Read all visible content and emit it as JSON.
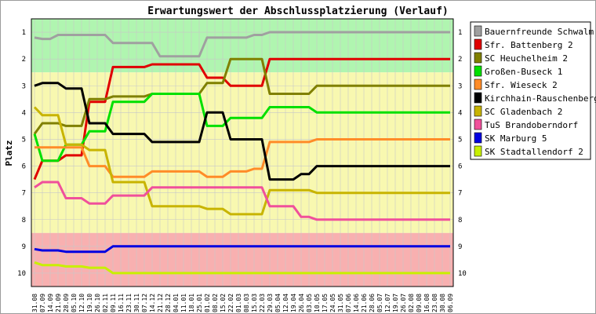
{
  "chart_data": {
    "type": "line",
    "title": "Erwartungswert der Abschlussplatzierung (Verlauf)",
    "ylabel": "Platz",
    "ylim": [
      0.5,
      10.5
    ],
    "y_inverted": true,
    "yticks": [
      1,
      2,
      3,
      4,
      5,
      6,
      7,
      8,
      9,
      10
    ],
    "x": [
      "31.08",
      "07.09",
      "14.09",
      "21.09",
      "28.09",
      "05.10",
      "12.10",
      "19.10",
      "26.10",
      "02.11",
      "09.11",
      "16.11",
      "23.11",
      "30.11",
      "07.12",
      "14.12",
      "21.12",
      "28.12",
      "04.01",
      "11.01",
      "18.01",
      "25.01",
      "01.02",
      "08.02",
      "15.02",
      "22.02",
      "01.03",
      "08.03",
      "15.03",
      "22.03",
      "29.03",
      "05.04",
      "12.04",
      "19.04",
      "26.04",
      "03.05",
      "10.05",
      "17.05",
      "24.05",
      "31.05",
      "07.06",
      "14.06",
      "21.06",
      "28.06",
      "05.07",
      "12.07",
      "19.07",
      "26.07",
      "02.08",
      "09.08",
      "16.08",
      "23.08",
      "30.08",
      "06.09"
    ],
    "zones": [
      {
        "from": 0.5,
        "to": 2.5,
        "color": "#b0f5b0"
      },
      {
        "from": 2.5,
        "to": 8.5,
        "color": "#f8f8b0"
      },
      {
        "from": 8.5,
        "to": 10.5,
        "color": "#f8b0b0"
      }
    ],
    "grid": true,
    "legend_position": "right",
    "series": [
      {
        "name": "Bauernfreunde Schwalm",
        "color": "#a0a0a0",
        "values": [
          1.2,
          1.25,
          1.25,
          1.1,
          1.1,
          1.1,
          1.1,
          1.1,
          1.1,
          1.1,
          1.4,
          1.4,
          1.4,
          1.4,
          1.4,
          1.4,
          1.9,
          1.9,
          1.9,
          1.9,
          1.9,
          1.9,
          1.2,
          1.2,
          1.2,
          1.2,
          1.2,
          1.2,
          1.1,
          1.1,
          1,
          1,
          1,
          1,
          1,
          1,
          1,
          1,
          1,
          1,
          1,
          1,
          1,
          1,
          1,
          1,
          1,
          1,
          1,
          1,
          1,
          1,
          1,
          1
        ]
      },
      {
        "name": "Sfr. Battenberg 2",
        "color": "#e00000",
        "values": [
          6.5,
          5.8,
          5.8,
          5.8,
          5.6,
          5.6,
          5.6,
          3.6,
          3.6,
          3.6,
          2.3,
          2.3,
          2.3,
          2.3,
          2.3,
          2.2,
          2.2,
          2.2,
          2.2,
          2.2,
          2.2,
          2.2,
          2.7,
          2.7,
          2.7,
          3,
          3,
          3,
          3,
          3,
          2,
          2,
          2,
          2,
          2,
          2,
          2,
          2,
          2,
          2,
          2,
          2,
          2,
          2,
          2,
          2,
          2,
          2,
          2,
          2,
          2,
          2,
          2,
          2
        ]
      },
      {
        "name": "SC Heuchelheim 2",
        "color": "#808000",
        "values": [
          4.8,
          4.4,
          4.4,
          4.4,
          4.5,
          4.5,
          4.5,
          3.5,
          3.5,
          3.5,
          3.4,
          3.4,
          3.4,
          3.4,
          3.4,
          3.3,
          3.3,
          3.3,
          3.3,
          3.3,
          3.3,
          3.3,
          2.9,
          2.9,
          2.9,
          2,
          2,
          2,
          2,
          2,
          3.3,
          3.3,
          3.3,
          3.3,
          3.3,
          3.3,
          3,
          3,
          3,
          3,
          3,
          3,
          3,
          3,
          3,
          3,
          3,
          3,
          3,
          3,
          3,
          3,
          3,
          3
        ]
      },
      {
        "name": "Großen-Buseck 1",
        "color": "#00e000",
        "values": [
          4.8,
          5.8,
          5.8,
          5.8,
          5.2,
          5.2,
          5.2,
          4.7,
          4.7,
          4.7,
          3.6,
          3.6,
          3.6,
          3.6,
          3.6,
          3.3,
          3.3,
          3.3,
          3.3,
          3.3,
          3.3,
          3.3,
          4.5,
          4.5,
          4.5,
          4.2,
          4.2,
          4.2,
          4.2,
          4.2,
          3.8,
          3.8,
          3.8,
          3.8,
          3.8,
          3.8,
          4,
          4,
          4,
          4,
          4,
          4,
          4,
          4,
          4,
          4,
          4,
          4,
          4,
          4,
          4,
          4,
          4,
          4
        ]
      },
      {
        "name": "Sfr. Wieseck 2",
        "color": "#ff8c28",
        "values": [
          5.3,
          5.3,
          5.3,
          5.3,
          5.3,
          5.3,
          5.3,
          6,
          6,
          6,
          6.4,
          6.4,
          6.4,
          6.4,
          6.4,
          6.2,
          6.2,
          6.2,
          6.2,
          6.2,
          6.2,
          6.2,
          6.4,
          6.4,
          6.4,
          6.2,
          6.2,
          6.2,
          6.1,
          6.1,
          5.1,
          5.1,
          5.1,
          5.1,
          5.1,
          5.1,
          5,
          5,
          5,
          5,
          5,
          5,
          5,
          5,
          5,
          5,
          5,
          5,
          5,
          5,
          5,
          5,
          5,
          5
        ]
      },
      {
        "name": "Kirchhain-Rauschenberg",
        "color": "#000000",
        "values": [
          3,
          2.9,
          2.9,
          2.9,
          3.1,
          3.1,
          3.1,
          4.4,
          4.4,
          4.4,
          4.8,
          4.8,
          4.8,
          4.8,
          4.8,
          5.1,
          5.1,
          5.1,
          5.1,
          5.1,
          5.1,
          5.1,
          4,
          4,
          4,
          5,
          5,
          5,
          5,
          5,
          6.5,
          6.5,
          6.5,
          6.5,
          6.3,
          6.3,
          6,
          6,
          6,
          6,
          6,
          6,
          6,
          6,
          6,
          6,
          6,
          6,
          6,
          6,
          6,
          6,
          6,
          6
        ]
      },
      {
        "name": "SC Gladenbach 2",
        "color": "#c8b400",
        "values": [
          3.8,
          4.1,
          4.1,
          4.1,
          5.2,
          5.2,
          5.2,
          5.4,
          5.4,
          5.4,
          6.6,
          6.6,
          6.6,
          6.6,
          6.6,
          7.5,
          7.5,
          7.5,
          7.5,
          7.5,
          7.5,
          7.5,
          7.6,
          7.6,
          7.6,
          7.8,
          7.8,
          7.8,
          7.8,
          7.8,
          6.9,
          6.9,
          6.9,
          6.9,
          6.9,
          6.9,
          7,
          7,
          7,
          7,
          7,
          7,
          7,
          7,
          7,
          7,
          7,
          7,
          7,
          7,
          7,
          7,
          7,
          7
        ]
      },
      {
        "name": "TuS Brandoberndorf",
        "color": "#f0509b",
        "values": [
          6.8,
          6.6,
          6.6,
          6.6,
          7.2,
          7.2,
          7.2,
          7.4,
          7.4,
          7.4,
          7.1,
          7.1,
          7.1,
          7.1,
          7.1,
          6.8,
          6.8,
          6.8,
          6.8,
          6.8,
          6.8,
          6.8,
          6.8,
          6.8,
          6.8,
          6.8,
          6.8,
          6.8,
          6.8,
          6.8,
          7.5,
          7.5,
          7.5,
          7.5,
          7.9,
          7.9,
          8,
          8,
          8,
          8,
          8,
          8,
          8,
          8,
          8,
          8,
          8,
          8,
          8,
          8,
          8,
          8,
          8,
          8
        ]
      },
      {
        "name": "SK Marburg 5",
        "color": "#0000e0",
        "values": [
          9.1,
          9.15,
          9.15,
          9.15,
          9.2,
          9.2,
          9.2,
          9.2,
          9.2,
          9.2,
          9,
          9,
          9,
          9,
          9,
          9,
          9,
          9,
          9,
          9,
          9,
          9,
          9,
          9,
          9,
          9,
          9,
          9,
          9,
          9,
          9,
          9,
          9,
          9,
          9,
          9,
          9,
          9,
          9,
          9,
          9,
          9,
          9,
          9,
          9,
          9,
          9,
          9,
          9,
          9,
          9,
          9,
          9,
          9
        ]
      },
      {
        "name": "SK Stadtallendorf 2",
        "color": "#c8f000",
        "values": [
          9.6,
          9.7,
          9.7,
          9.7,
          9.75,
          9.75,
          9.75,
          9.8,
          9.8,
          9.8,
          10,
          10,
          10,
          10,
          10,
          10,
          10,
          10,
          10,
          10,
          10,
          10,
          10,
          10,
          10,
          10,
          10,
          10,
          10,
          10,
          10,
          10,
          10,
          10,
          10,
          10,
          10,
          10,
          10,
          10,
          10,
          10,
          10,
          10,
          10,
          10,
          10,
          10,
          10,
          10,
          10,
          10,
          10,
          10
        ]
      }
    ]
  }
}
